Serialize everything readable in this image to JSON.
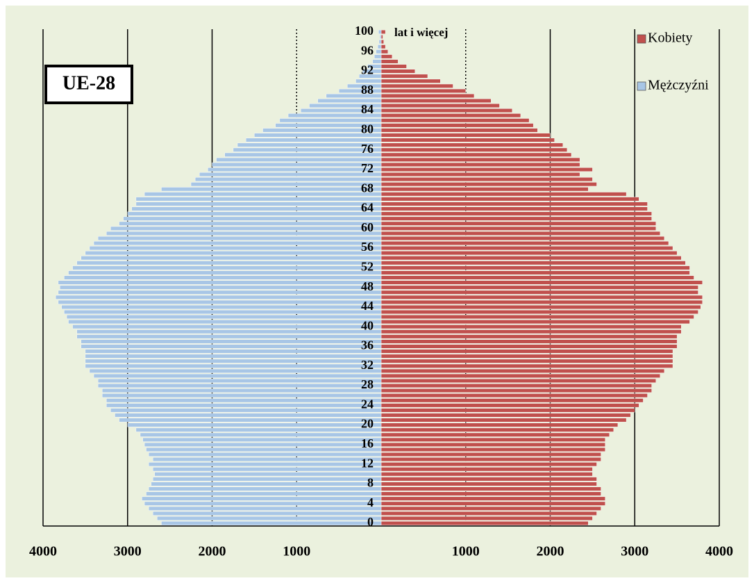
{
  "chart_data": {
    "type": "pyramid",
    "annotation": "lat i więcej",
    "badge": "UE-28",
    "categories": [
      "0",
      null,
      null,
      null,
      "4",
      null,
      null,
      null,
      "8",
      null,
      null,
      null,
      "12",
      null,
      null,
      null,
      "16",
      null,
      null,
      null,
      "20",
      null,
      null,
      null,
      "24",
      null,
      null,
      null,
      "28",
      null,
      null,
      null,
      "32",
      null,
      null,
      null,
      "36",
      null,
      null,
      null,
      "40",
      null,
      null,
      null,
      "44",
      null,
      null,
      null,
      "48",
      null,
      null,
      null,
      "52",
      null,
      null,
      null,
      "56",
      null,
      null,
      null,
      "60",
      null,
      null,
      null,
      "64",
      null,
      null,
      null,
      "68",
      null,
      null,
      null,
      "72",
      null,
      null,
      null,
      "76",
      null,
      null,
      null,
      "80",
      null,
      null,
      null,
      "84",
      null,
      null,
      null,
      "88",
      null,
      null,
      null,
      "92",
      null,
      null,
      null,
      "96",
      null,
      null,
      null,
      "100"
    ],
    "series": [
      {
        "name": "Kobiety",
        "color": "#c0504d",
        "side": "right",
        "values": [
          2450,
          2500,
          2550,
          2600,
          2650,
          2650,
          2600,
          2600,
          2550,
          2550,
          2500,
          2500,
          2550,
          2600,
          2600,
          2650,
          2650,
          2650,
          2700,
          2750,
          2800,
          2900,
          2950,
          3000,
          3050,
          3100,
          3150,
          3200,
          3200,
          3250,
          3300,
          3350,
          3450,
          3450,
          3450,
          3450,
          3500,
          3500,
          3500,
          3550,
          3550,
          3650,
          3700,
          3750,
          3780,
          3800,
          3800,
          3750,
          3750,
          3800,
          3700,
          3650,
          3650,
          3600,
          3550,
          3500,
          3450,
          3400,
          3350,
          3300,
          3250,
          3250,
          3200,
          3200,
          3150,
          3150,
          3050,
          2900,
          2450,
          2550,
          2500,
          2350,
          2500,
          2350,
          2350,
          2250,
          2200,
          2150,
          2050,
          2000,
          1850,
          1800,
          1750,
          1650,
          1550,
          1400,
          1300,
          1100,
          1000,
          850,
          700,
          550,
          400,
          300,
          200,
          130,
          80,
          50,
          30,
          20,
          50
        ]
      },
      {
        "name": "Mężczyźni",
        "color": "#a8c6e6",
        "side": "left",
        "values": [
          2600,
          2650,
          2700,
          2750,
          2800,
          2830,
          2780,
          2750,
          2720,
          2700,
          2680,
          2700,
          2750,
          2700,
          2750,
          2780,
          2800,
          2820,
          2850,
          2900,
          3000,
          3100,
          3150,
          3200,
          3250,
          3250,
          3300,
          3300,
          3350,
          3350,
          3400,
          3450,
          3500,
          3500,
          3500,
          3500,
          3550,
          3550,
          3600,
          3600,
          3650,
          3700,
          3720,
          3750,
          3780,
          3820,
          3850,
          3820,
          3800,
          3820,
          3750,
          3700,
          3650,
          3600,
          3550,
          3500,
          3450,
          3400,
          3350,
          3250,
          3200,
          3100,
          3050,
          3000,
          2950,
          2900,
          2900,
          2800,
          2600,
          2250,
          2200,
          2150,
          2050,
          2000,
          1950,
          1850,
          1750,
          1700,
          1600,
          1500,
          1400,
          1250,
          1200,
          1100,
          950,
          850,
          750,
          650,
          500,
          400,
          300,
          260,
          220,
          160,
          100,
          80,
          60,
          40,
          25,
          15,
          30
        ]
      }
    ],
    "xlim": [
      -4000,
      4000
    ],
    "xticks": [
      {
        "value": -4000,
        "label": "4000"
      },
      {
        "value": -3000,
        "label": "3000"
      },
      {
        "value": -2000,
        "label": "2000"
      },
      {
        "value": -1000,
        "label": "1000"
      },
      1000,
      2000,
      3000,
      4000
    ],
    "grid": true
  }
}
